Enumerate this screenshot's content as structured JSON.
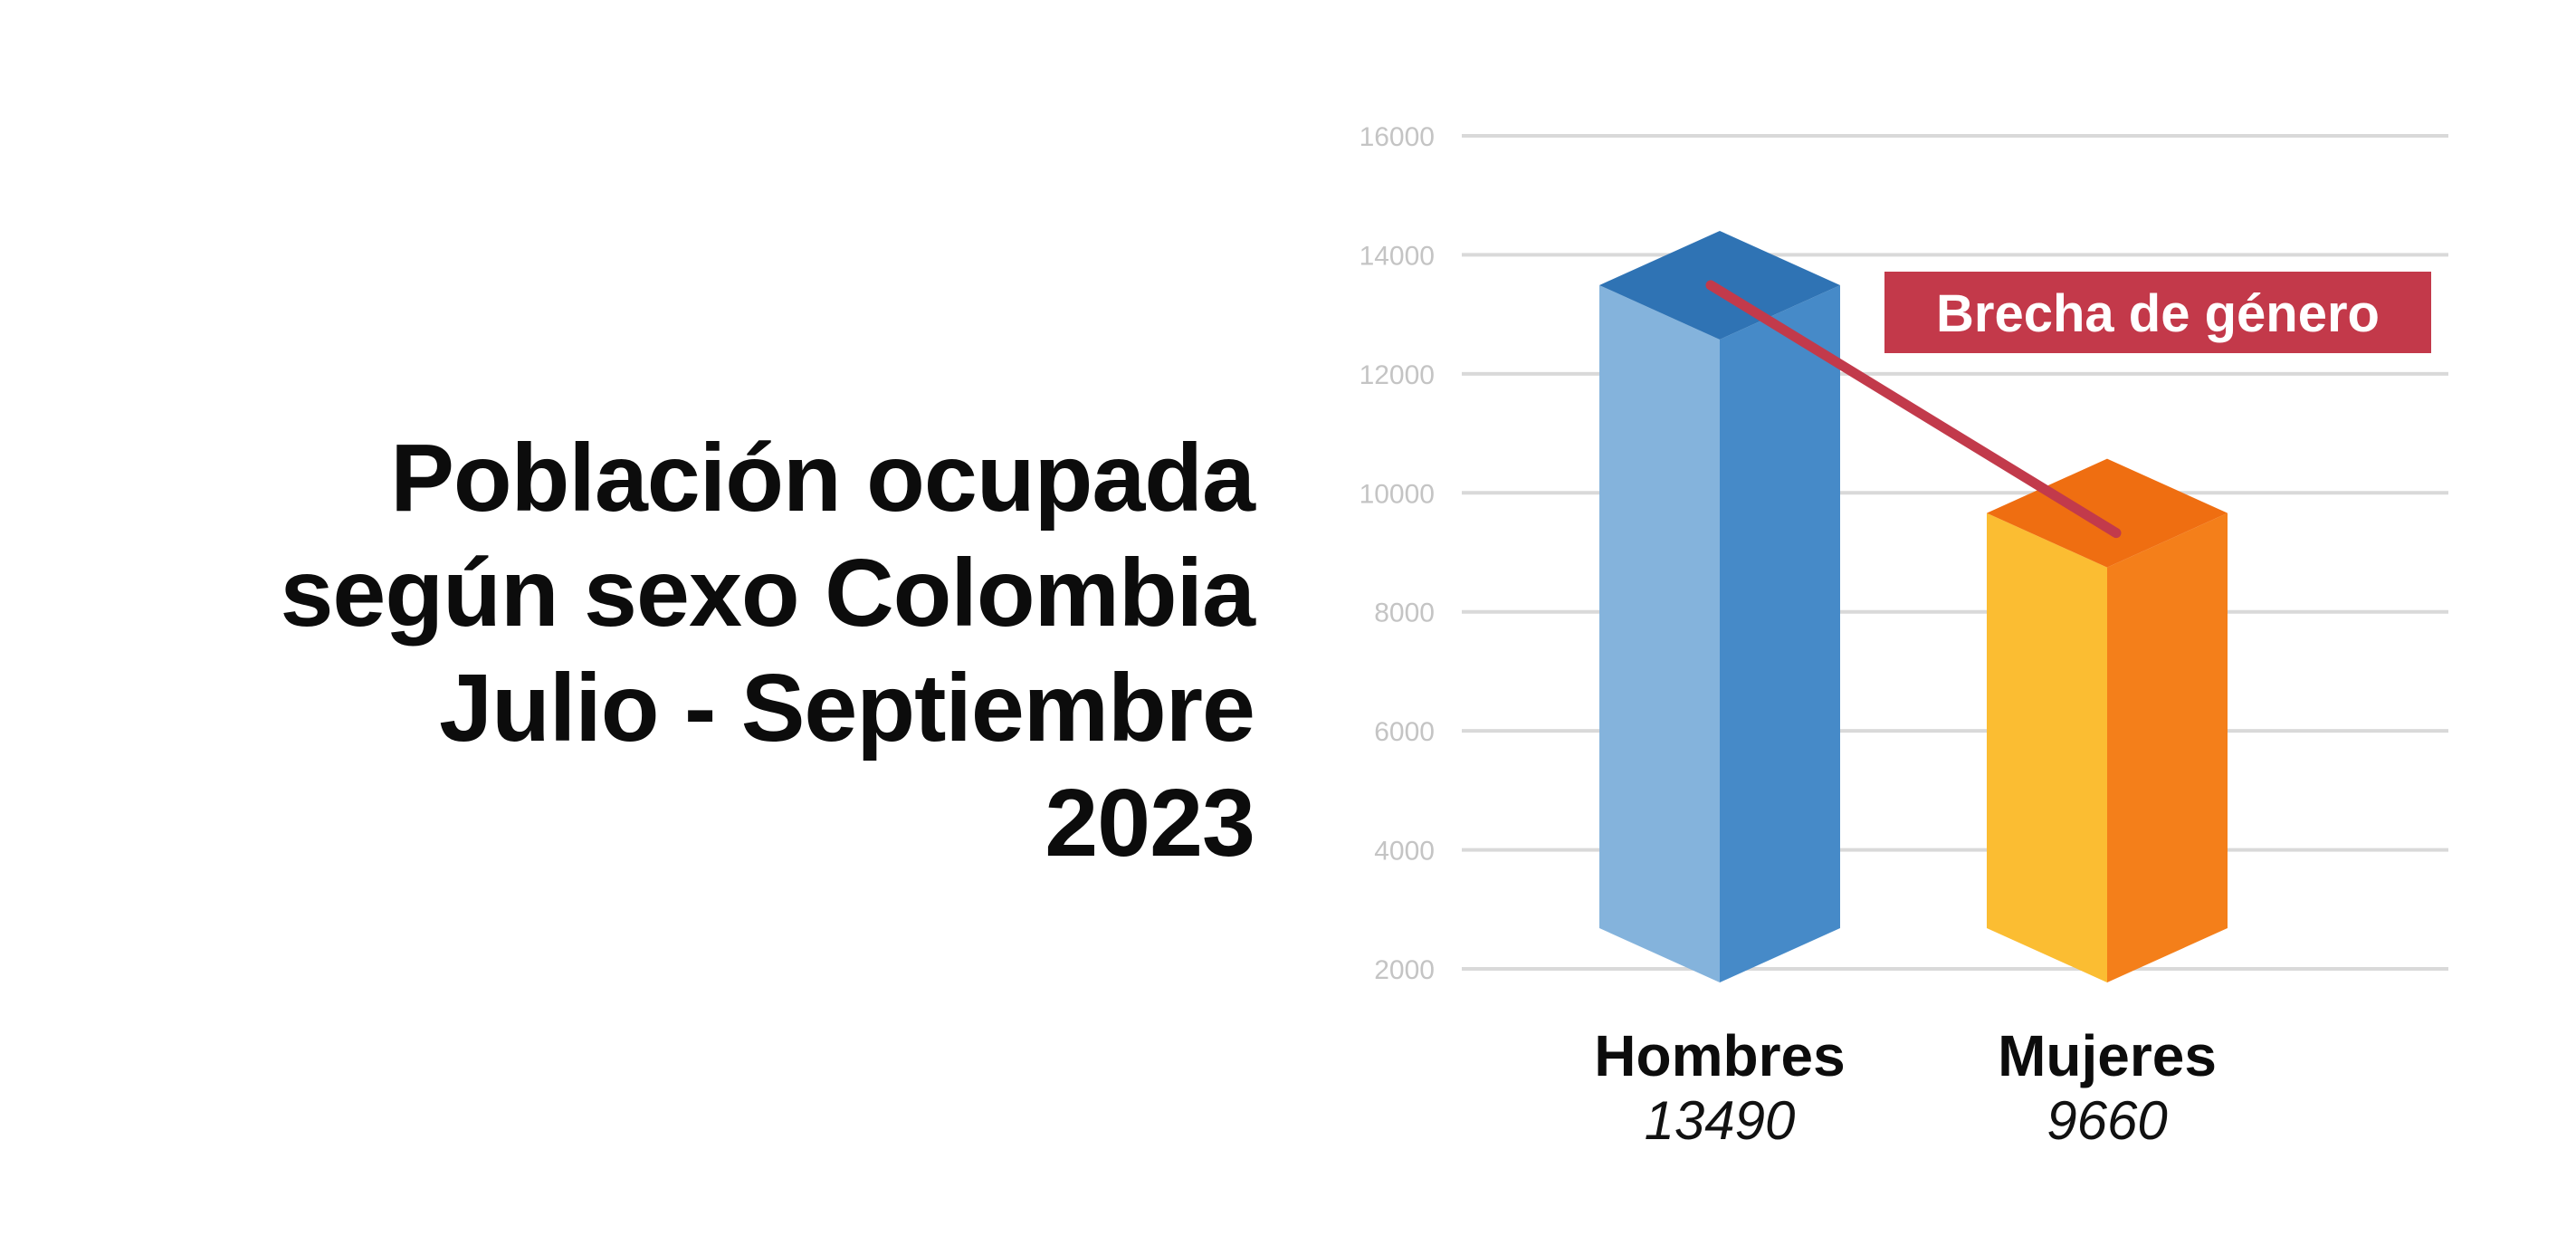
{
  "title_lines": [
    "Población ocupada",
    "según sexo Colombia",
    "Julio - Septiembre",
    "2023"
  ],
  "chart_data": {
    "type": "bar",
    "title": "Población ocupada según sexo Colombia Julio - Septiembre 2023",
    "categories": [
      "Hombres",
      "Mujeres"
    ],
    "values": [
      13490,
      9660
    ],
    "value_labels": [
      "13490",
      "9660"
    ],
    "y_ticks": [
      2000,
      4000,
      6000,
      8000,
      10000,
      12000,
      14000,
      16000
    ],
    "y_tick_labels": [
      "2000",
      "4000",
      "6000",
      "8000",
      "10000",
      "12000",
      "14000",
      "16000"
    ],
    "ylim": [
      2000,
      16000
    ],
    "grid": true,
    "annotation": "Brecha de género",
    "colors": {
      "Hombres": {
        "front": "#84b3dc",
        "side": "#468ac8",
        "top": "#2f73b4"
      },
      "Mujeres": {
        "front": "#fbbd32",
        "side": "#f47f1a",
        "top": "#ef6e11"
      },
      "gap_line": "#c23a4b",
      "annotation_bg": "#c3394a",
      "grid": "#d9d9d9"
    }
  }
}
